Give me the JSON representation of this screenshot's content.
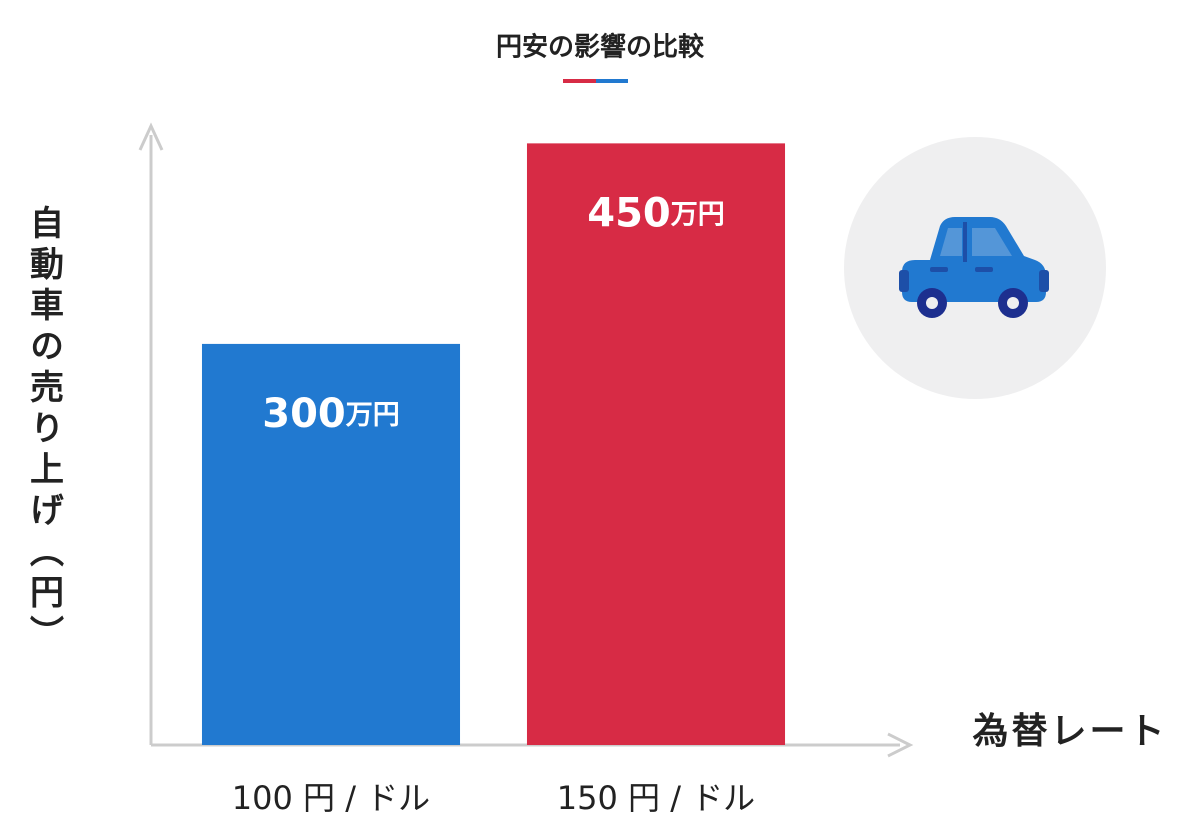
{
  "chart_data": {
    "type": "bar",
    "title": "円安の影響の比較",
    "y_label": "自動車の売り上げ（円）",
    "x_label": "為替レート",
    "categories": [
      "100 円 / ドル",
      "150 円 / ドル"
    ],
    "values": [
      300,
      450
    ],
    "value_labels": [
      "300万円",
      "450万円"
    ],
    "colors": [
      "#2179d0",
      "#d72b45"
    ],
    "ylim": [
      0,
      460
    ]
  }
}
